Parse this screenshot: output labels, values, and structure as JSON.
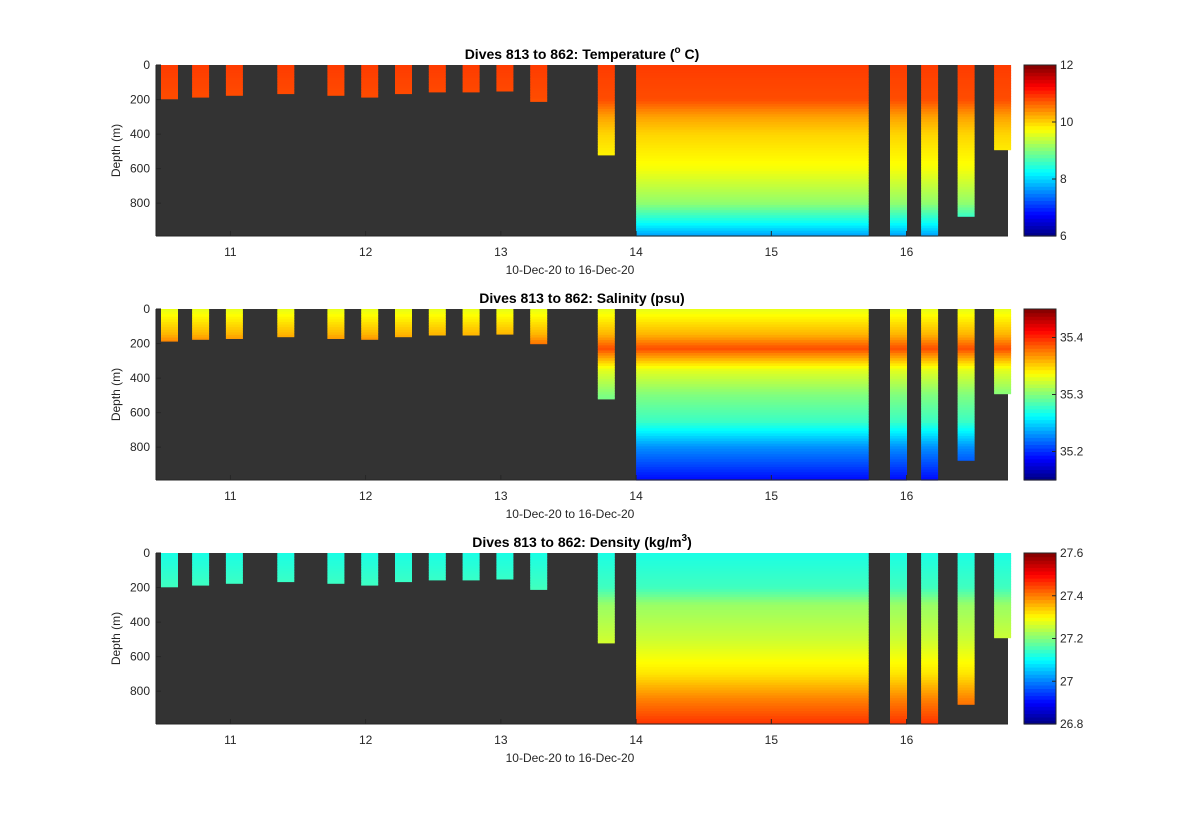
{
  "colors": {
    "background": "#333333",
    "axis": "#262626",
    "colormap": "jet"
  },
  "chart_data": [
    {
      "type": "heatmap",
      "title_prefix": "Dives 813 to 862: Temperature (",
      "title_sup": "o",
      "title_suffix": " C)",
      "variable": "temperature",
      "xlabel": "10-Dec-20 to 16-Dec-20",
      "ylabel": "Depth (m)",
      "x_ticks": [
        "11",
        "12",
        "13",
        "14",
        "15",
        "16"
      ],
      "y_ticks": [
        "0",
        "200",
        "400",
        "600",
        "800"
      ],
      "xlim": [
        10.45,
        16.75
      ],
      "ylim": [
        0,
        990
      ],
      "y_reversed": true,
      "clim": [
        6,
        12
      ],
      "colorbar_ticks": [
        "6",
        "8",
        "10",
        "12"
      ],
      "profiles": [
        {
          "x": 10.55,
          "max_depth": 195
        },
        {
          "x": 10.78,
          "max_depth": 185
        },
        {
          "x": 11.03,
          "max_depth": 175
        },
        {
          "x": 11.41,
          "max_depth": 165
        },
        {
          "x": 11.78,
          "max_depth": 175
        },
        {
          "x": 12.03,
          "max_depth": 185
        },
        {
          "x": 12.28,
          "max_depth": 165
        },
        {
          "x": 12.53,
          "max_depth": 155
        },
        {
          "x": 12.78,
          "max_depth": 155
        },
        {
          "x": 13.03,
          "max_depth": 150
        },
        {
          "x": 13.28,
          "max_depth": 210
        },
        {
          "x": 13.78,
          "max_depth": 520
        },
        {
          "x": 14.85,
          "max_depth": 990,
          "span": [
            14.0,
            15.72
          ]
        },
        {
          "x": 15.94,
          "max_depth": 990
        },
        {
          "x": 16.17,
          "max_depth": 990
        },
        {
          "x": 16.44,
          "max_depth": 875
        },
        {
          "x": 16.71,
          "max_depth": 490
        }
      ],
      "profile_shape": [
        {
          "depth": 0,
          "value": 10.9
        },
        {
          "depth": 200,
          "value": 10.8
        },
        {
          "depth": 300,
          "value": 10.3
        },
        {
          "depth": 400,
          "value": 10.0
        },
        {
          "depth": 600,
          "value": 9.7
        },
        {
          "depth": 800,
          "value": 9.1
        },
        {
          "depth": 900,
          "value": 8.4
        },
        {
          "depth": 990,
          "value": 7.7
        }
      ]
    },
    {
      "type": "heatmap",
      "title_prefix": "Dives 813 to 862: Salinity (psu)",
      "title_sup": "",
      "title_suffix": "",
      "variable": "salinity",
      "xlabel": "10-Dec-20 to 16-Dec-20",
      "ylabel": "Depth (m)",
      "x_ticks": [
        "11",
        "12",
        "13",
        "14",
        "15",
        "16"
      ],
      "y_ticks": [
        "0",
        "200",
        "400",
        "600",
        "800"
      ],
      "xlim": [
        10.45,
        16.75
      ],
      "ylim": [
        0,
        990
      ],
      "y_reversed": true,
      "clim": [
        35.15,
        35.45
      ],
      "colorbar_ticks": [
        "35.2",
        "35.3",
        "35.4"
      ],
      "colorbar_tick_values": [
        35.2,
        35.3,
        35.4
      ],
      "profiles": [
        {
          "x": 10.55,
          "max_depth": 185
        },
        {
          "x": 10.78,
          "max_depth": 175
        },
        {
          "x": 11.03,
          "max_depth": 170
        },
        {
          "x": 11.41,
          "max_depth": 160
        },
        {
          "x": 11.78,
          "max_depth": 170
        },
        {
          "x": 12.03,
          "max_depth": 175
        },
        {
          "x": 12.28,
          "max_depth": 160
        },
        {
          "x": 12.53,
          "max_depth": 150
        },
        {
          "x": 12.78,
          "max_depth": 150
        },
        {
          "x": 13.03,
          "max_depth": 145
        },
        {
          "x": 13.28,
          "max_depth": 200
        },
        {
          "x": 13.78,
          "max_depth": 520
        },
        {
          "x": 14.85,
          "max_depth": 990,
          "span": [
            14.0,
            15.72
          ]
        },
        {
          "x": 15.94,
          "max_depth": 990
        },
        {
          "x": 16.17,
          "max_depth": 990
        },
        {
          "x": 16.44,
          "max_depth": 875
        },
        {
          "x": 16.71,
          "max_depth": 490
        }
      ],
      "profile_shape": [
        {
          "depth": 0,
          "value": 35.33
        },
        {
          "depth": 150,
          "value": 35.36
        },
        {
          "depth": 230,
          "value": 35.39
        },
        {
          "depth": 350,
          "value": 35.33
        },
        {
          "depth": 500,
          "value": 35.3
        },
        {
          "depth": 650,
          "value": 35.28
        },
        {
          "depth": 800,
          "value": 35.23
        },
        {
          "depth": 990,
          "value": 35.19
        }
      ]
    },
    {
      "type": "heatmap",
      "title_prefix": "Dives 813 to 862: Density (kg/m",
      "title_sup": "3",
      "title_suffix": ")",
      "variable": "density",
      "xlabel": "10-Dec-20 to 16-Dec-20",
      "ylabel": "Depth (m)",
      "x_ticks": [
        "11",
        "12",
        "13",
        "14",
        "15",
        "16"
      ],
      "y_ticks": [
        "0",
        "200",
        "400",
        "600",
        "800"
      ],
      "xlim": [
        10.45,
        16.75
      ],
      "ylim": [
        0,
        990
      ],
      "y_reversed": true,
      "clim": [
        26.8,
        27.6
      ],
      "colorbar_ticks": [
        "26.8",
        "27",
        "27.2",
        "27.4",
        "27.6"
      ],
      "profiles": [
        {
          "x": 10.55,
          "max_depth": 195
        },
        {
          "x": 10.78,
          "max_depth": 185
        },
        {
          "x": 11.03,
          "max_depth": 175
        },
        {
          "x": 11.41,
          "max_depth": 165
        },
        {
          "x": 11.78,
          "max_depth": 175
        },
        {
          "x": 12.03,
          "max_depth": 185
        },
        {
          "x": 12.28,
          "max_depth": 165
        },
        {
          "x": 12.53,
          "max_depth": 155
        },
        {
          "x": 12.78,
          "max_depth": 155
        },
        {
          "x": 13.03,
          "max_depth": 150
        },
        {
          "x": 13.28,
          "max_depth": 210
        },
        {
          "x": 13.78,
          "max_depth": 520
        },
        {
          "x": 14.85,
          "max_depth": 990,
          "span": [
            14.0,
            15.72
          ]
        },
        {
          "x": 15.94,
          "max_depth": 990
        },
        {
          "x": 16.17,
          "max_depth": 990
        },
        {
          "x": 16.44,
          "max_depth": 875
        },
        {
          "x": 16.71,
          "max_depth": 490
        }
      ],
      "profile_shape": [
        {
          "depth": 0,
          "value": 27.12
        },
        {
          "depth": 200,
          "value": 27.15
        },
        {
          "depth": 300,
          "value": 27.22
        },
        {
          "depth": 500,
          "value": 27.26
        },
        {
          "depth": 700,
          "value": 27.32
        },
        {
          "depth": 850,
          "value": 27.4
        },
        {
          "depth": 990,
          "value": 27.46
        }
      ]
    }
  ]
}
